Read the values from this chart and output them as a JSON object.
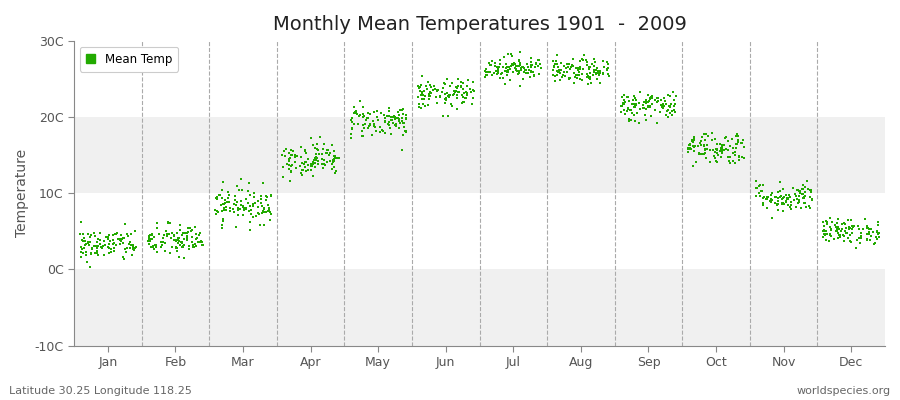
{
  "title": "Monthly Mean Temperatures 1901  -  2009",
  "ylabel": "Temperature",
  "y_ticks": [
    -10,
    0,
    10,
    20,
    30
  ],
  "y_tick_labels": [
    "-10C",
    "0C",
    "10C",
    "20C",
    "30C"
  ],
  "ylim": [
    -10,
    30
  ],
  "months": [
    "Jan",
    "Feb",
    "Mar",
    "Apr",
    "May",
    "Jun",
    "Jul",
    "Aug",
    "Sep",
    "Oct",
    "Nov",
    "Dec"
  ],
  "month_centers": [
    0.5,
    1.5,
    2.5,
    3.5,
    4.5,
    5.5,
    6.5,
    7.5,
    8.5,
    9.5,
    10.5,
    11.5
  ],
  "month_boundaries": [
    1.0,
    2.0,
    3.0,
    4.0,
    5.0,
    6.0,
    7.0,
    8.0,
    9.0,
    10.0,
    11.0
  ],
  "xlim": [
    0.0,
    12.0
  ],
  "mean_temps": [
    3.2,
    3.8,
    8.5,
    14.5,
    19.5,
    23.0,
    26.5,
    26.0,
    21.5,
    16.0,
    9.5,
    5.0
  ],
  "temp_spread": [
    2.0,
    2.0,
    2.2,
    2.0,
    2.0,
    1.8,
    1.5,
    1.5,
    1.8,
    2.0,
    1.8,
    1.5
  ],
  "n_points": 109,
  "marker_color": "#22aa00",
  "marker_size": 4,
  "fig_bg": "#ffffff",
  "plot_bg_light": "#f0f0f0",
  "plot_bg_dark": "#e0e0e0",
  "title_fontsize": 14,
  "axis_fontsize": 10,
  "tick_fontsize": 9,
  "legend_label": "Mean Temp",
  "bottom_left": "Latitude 30.25 Longitude 118.25",
  "bottom_right": "worldspecies.org"
}
